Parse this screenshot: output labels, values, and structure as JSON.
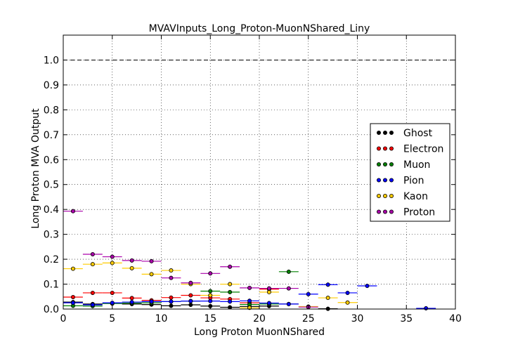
{
  "chart_data": {
    "type": "scatter",
    "title": "MVAVInputs_Long_Proton-MuonNShared_Liny",
    "xlabel": "Long Proton MuonNShared",
    "ylabel": "Long Proton MVA Output",
    "xlim": [
      0,
      40
    ],
    "ylim": [
      0,
      1.1
    ],
    "x_ticks": [
      "0",
      "5",
      "10",
      "15",
      "20",
      "25",
      "30",
      "35",
      "40"
    ],
    "y_ticks": [
      "0.0",
      "0.1",
      "0.2",
      "0.3",
      "0.4",
      "0.5",
      "0.6",
      "0.7",
      "0.8",
      "0.9",
      "1.0"
    ],
    "grid": true,
    "reference_line": 1.0,
    "legend_position": "right",
    "bin_halfwidth": 1,
    "series": [
      {
        "name": "Ghost",
        "color": "#000000",
        "points": [
          [
            1,
            0.028
          ],
          [
            3,
            0.02
          ],
          [
            5,
            0.023
          ],
          [
            7,
            0.02
          ],
          [
            9,
            0.018
          ],
          [
            11,
            0.013
          ],
          [
            13,
            0.017
          ],
          [
            15,
            0.012
          ],
          [
            17,
            0.007
          ],
          [
            19,
            0.01
          ],
          [
            21,
            0.012
          ],
          [
            23,
            0.02
          ],
          [
            27,
            0.001
          ]
        ]
      },
      {
        "name": "Electron",
        "color": "#ff0000",
        "points": [
          [
            1,
            0.048
          ],
          [
            3,
            0.065
          ],
          [
            5,
            0.065
          ],
          [
            7,
            0.044
          ],
          [
            9,
            0.035
          ],
          [
            11,
            0.046
          ],
          [
            13,
            0.055
          ],
          [
            15,
            0.045
          ],
          [
            17,
            0.04
          ],
          [
            19,
            0.025
          ],
          [
            21,
            0.08
          ]
        ]
      },
      {
        "name": "Muon",
        "color": "#008000",
        "points": [
          [
            1,
            0.013
          ],
          [
            3,
            0.012
          ],
          [
            5,
            0.022
          ],
          [
            7,
            0.024
          ],
          [
            9,
            0.025
          ],
          [
            11,
            0.03
          ],
          [
            13,
            0.032
          ],
          [
            15,
            0.072
          ],
          [
            17,
            0.068
          ],
          [
            19,
            0.018
          ],
          [
            21,
            0.02
          ],
          [
            23,
            0.15
          ]
        ]
      },
      {
        "name": "Pion",
        "color": "#0000ff",
        "points": [
          [
            1,
            0.025
          ],
          [
            3,
            0.017
          ],
          [
            5,
            0.025
          ],
          [
            7,
            0.028
          ],
          [
            9,
            0.03
          ],
          [
            11,
            0.03
          ],
          [
            13,
            0.032
          ],
          [
            15,
            0.032
          ],
          [
            17,
            0.03
          ],
          [
            19,
            0.033
          ],
          [
            21,
            0.024
          ],
          [
            23,
            0.02
          ],
          [
            25,
            0.06
          ],
          [
            27,
            0.098
          ],
          [
            29,
            0.065
          ],
          [
            31,
            0.093
          ],
          [
            37,
            0.003
          ]
        ]
      },
      {
        "name": "Kaon",
        "color": "#ffcc00",
        "points": [
          [
            1,
            0.162
          ],
          [
            3,
            0.18
          ],
          [
            5,
            0.185
          ],
          [
            7,
            0.164
          ],
          [
            9,
            0.14
          ],
          [
            11,
            0.155
          ],
          [
            13,
            0.1
          ],
          [
            15,
            0.055
          ],
          [
            17,
            0.1
          ],
          [
            19,
            0.005
          ],
          [
            21,
            0.068
          ],
          [
            25,
            0.01
          ],
          [
            27,
            0.045
          ],
          [
            29,
            0.026
          ]
        ]
      },
      {
        "name": "Proton",
        "color": "#aa00aa",
        "points": [
          [
            1,
            0.393
          ],
          [
            3,
            0.22
          ],
          [
            5,
            0.21
          ],
          [
            7,
            0.195
          ],
          [
            9,
            0.192
          ],
          [
            11,
            0.125
          ],
          [
            13,
            0.105
          ],
          [
            15,
            0.143
          ],
          [
            17,
            0.17
          ],
          [
            19,
            0.085
          ],
          [
            21,
            0.083
          ],
          [
            23,
            0.083
          ],
          [
            25,
            0.008
          ]
        ]
      }
    ]
  }
}
